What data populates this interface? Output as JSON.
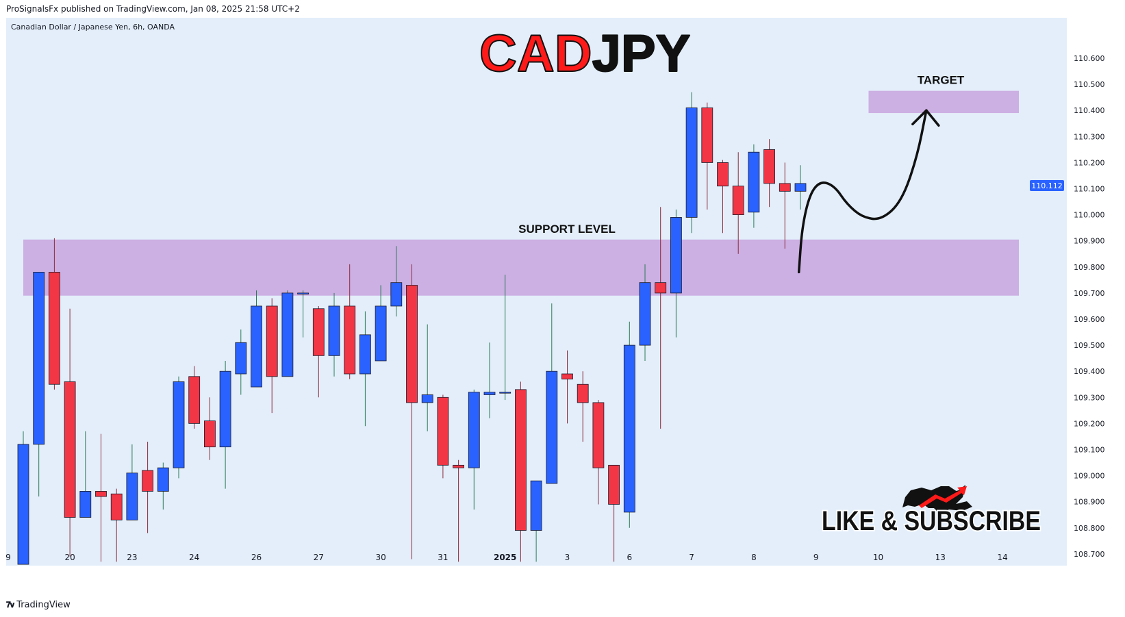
{
  "header": {
    "published": "ProSignalsFx published on TradingView.com, Jan 08, 2025 21:58 UTC+2"
  },
  "footer": {
    "brand": "TradingView",
    "logo_icon": "tradingview-logo-icon"
  },
  "colors": {
    "background": "#e3eefa",
    "bull": "#2962ff",
    "bear": "#f23645",
    "zone": "#c9a7e0",
    "price_label_bg": "#2962ff",
    "title_red": "#ff1a1a",
    "title_black": "#111111"
  },
  "chart_data": {
    "type": "candlestick",
    "symbol_info": "Canadian Dollar / Japanese Yen, 6h, OANDA",
    "title_part1": "CAD",
    "title_part2": "JPY",
    "ylim": [
      108.655,
      110.755
    ],
    "y_ticks": [
      "110.600",
      "110.500",
      "110.400",
      "110.300",
      "110.200",
      "110.100",
      "110.000",
      "109.900",
      "109.800",
      "109.700",
      "109.600",
      "109.500",
      "109.400",
      "109.300",
      "109.200",
      "109.100",
      "109.000",
      "108.900",
      "108.800",
      "108.700"
    ],
    "x_ticks": [
      {
        "label": "9",
        "index": -1,
        "bold": false
      },
      {
        "label": "20",
        "index": 3,
        "bold": false
      },
      {
        "label": "23",
        "index": 7,
        "bold": false
      },
      {
        "label": "24",
        "index": 11,
        "bold": false
      },
      {
        "label": "26",
        "index": 15,
        "bold": false
      },
      {
        "label": "27",
        "index": 19,
        "bold": false
      },
      {
        "label": "30",
        "index": 23,
        "bold": false
      },
      {
        "label": "31",
        "index": 27,
        "bold": false
      },
      {
        "label": "2025",
        "index": 31,
        "bold": true
      },
      {
        "label": "3",
        "index": 35,
        "bold": false
      },
      {
        "label": "6",
        "index": 39,
        "bold": false
      },
      {
        "label": "7",
        "index": 43,
        "bold": false
      },
      {
        "label": "8",
        "index": 47,
        "bold": false
      },
      {
        "label": "9",
        "index": 51,
        "bold": false
      },
      {
        "label": "10",
        "index": 55,
        "bold": false
      },
      {
        "label": "13",
        "index": 59,
        "bold": false
      },
      {
        "label": "14",
        "index": 63,
        "bold": false
      }
    ],
    "candles": [
      {
        "o": 108.66,
        "h": 109.17,
        "l": 108.66,
        "c": 109.12
      },
      {
        "o": 109.12,
        "h": 109.78,
        "l": 108.92,
        "c": 109.78
      },
      {
        "o": 109.78,
        "h": 109.91,
        "l": 109.33,
        "c": 109.35
      },
      {
        "o": 109.36,
        "h": 109.64,
        "l": 108.69,
        "c": 108.84
      },
      {
        "o": 108.84,
        "h": 109.17,
        "l": 108.84,
        "c": 108.94
      },
      {
        "o": 108.94,
        "h": 109.16,
        "l": 108.67,
        "c": 108.92
      },
      {
        "o": 108.93,
        "h": 108.95,
        "l": 108.67,
        "c": 108.83
      },
      {
        "o": 108.83,
        "h": 109.12,
        "l": 108.83,
        "c": 109.01
      },
      {
        "o": 109.02,
        "h": 109.13,
        "l": 108.78,
        "c": 108.94
      },
      {
        "o": 108.94,
        "h": 109.05,
        "l": 108.87,
        "c": 109.03
      },
      {
        "o": 109.03,
        "h": 109.38,
        "l": 108.99,
        "c": 109.36
      },
      {
        "o": 109.38,
        "h": 109.42,
        "l": 109.18,
        "c": 109.2
      },
      {
        "o": 109.21,
        "h": 109.3,
        "l": 109.06,
        "c": 109.11
      },
      {
        "o": 109.11,
        "h": 109.44,
        "l": 108.95,
        "c": 109.4
      },
      {
        "o": 109.39,
        "h": 109.56,
        "l": 109.31,
        "c": 109.51
      },
      {
        "o": 109.34,
        "h": 109.71,
        "l": 109.34,
        "c": 109.65
      },
      {
        "o": 109.65,
        "h": 109.68,
        "l": 109.24,
        "c": 109.38
      },
      {
        "o": 109.38,
        "h": 109.71,
        "l": 109.38,
        "c": 109.7
      },
      {
        "o": 109.7,
        "h": 109.71,
        "l": 109.53,
        "c": 109.7
      },
      {
        "o": 109.64,
        "h": 109.65,
        "l": 109.3,
        "c": 109.46
      },
      {
        "o": 109.46,
        "h": 109.7,
        "l": 109.38,
        "c": 109.65
      },
      {
        "o": 109.65,
        "h": 109.81,
        "l": 109.37,
        "c": 109.39
      },
      {
        "o": 109.39,
        "h": 109.63,
        "l": 109.19,
        "c": 109.54
      },
      {
        "o": 109.44,
        "h": 109.73,
        "l": 109.44,
        "c": 109.65
      },
      {
        "o": 109.65,
        "h": 109.88,
        "l": 109.61,
        "c": 109.74
      },
      {
        "o": 109.73,
        "h": 109.81,
        "l": 108.68,
        "c": 109.28
      },
      {
        "o": 109.28,
        "h": 109.58,
        "l": 109.17,
        "c": 109.31
      },
      {
        "o": 109.3,
        "h": 109.31,
        "l": 108.99,
        "c": 109.04
      },
      {
        "o": 109.04,
        "h": 109.06,
        "l": 108.67,
        "c": 109.03
      },
      {
        "o": 109.03,
        "h": 109.33,
        "l": 108.87,
        "c": 109.32
      },
      {
        "o": 109.31,
        "h": 109.51,
        "l": 109.22,
        "c": 109.32
      },
      {
        "o": 109.32,
        "h": 109.77,
        "l": 109.29,
        "c": 109.32
      },
      {
        "o": 109.33,
        "h": 109.36,
        "l": 108.67,
        "c": 108.79
      },
      {
        "o": 108.79,
        "h": 108.98,
        "l": 108.67,
        "c": 108.98
      },
      {
        "o": 108.97,
        "h": 109.66,
        "l": 108.97,
        "c": 109.4
      },
      {
        "o": 109.39,
        "h": 109.48,
        "l": 109.2,
        "c": 109.37
      },
      {
        "o": 109.35,
        "h": 109.4,
        "l": 109.13,
        "c": 109.28
      },
      {
        "o": 109.28,
        "h": 109.29,
        "l": 108.89,
        "c": 109.03
      },
      {
        "o": 109.04,
        "h": 109.04,
        "l": 108.67,
        "c": 108.89
      },
      {
        "o": 108.86,
        "h": 109.59,
        "l": 108.8,
        "c": 109.5
      },
      {
        "o": 109.5,
        "h": 109.81,
        "l": 109.44,
        "c": 109.74
      },
      {
        "o": 109.74,
        "h": 110.03,
        "l": 109.18,
        "c": 109.7
      },
      {
        "o": 109.7,
        "h": 110.02,
        "l": 109.53,
        "c": 109.99
      },
      {
        "o": 109.99,
        "h": 110.47,
        "l": 109.93,
        "c": 110.41
      },
      {
        "o": 110.41,
        "h": 110.43,
        "l": 110.02,
        "c": 110.2
      },
      {
        "o": 110.2,
        "h": 110.21,
        "l": 109.93,
        "c": 110.11
      },
      {
        "o": 110.11,
        "h": 110.24,
        "l": 109.85,
        "c": 110.0
      },
      {
        "o": 110.01,
        "h": 110.27,
        "l": 109.95,
        "c": 110.24
      },
      {
        "o": 110.25,
        "h": 110.29,
        "l": 110.03,
        "c": 110.12
      },
      {
        "o": 110.12,
        "h": 110.2,
        "l": 109.87,
        "c": 110.09
      },
      {
        "o": 110.09,
        "h": 110.19,
        "l": 110.02,
        "c": 110.12
      }
    ],
    "zones": [
      {
        "name": "support-zone",
        "label": "SUPPORT LEVEL",
        "y_low": 109.69,
        "y_high": 109.905,
        "from_index": 0,
        "to_index": 63
      },
      {
        "name": "target-zone",
        "label": "TARGET",
        "y_low": 110.39,
        "y_high": 110.475,
        "from_index": 55,
        "to_index": 63
      }
    ],
    "projection_path": [
      {
        "i": 49.9,
        "p": 109.78
      },
      {
        "i": 50.1,
        "p": 109.95
      },
      {
        "i": 50.6,
        "p": 110.08
      },
      {
        "i": 51.3,
        "p": 110.13
      },
      {
        "i": 52.2,
        "p": 110.11
      },
      {
        "i": 53.0,
        "p": 110.04
      },
      {
        "i": 54.0,
        "p": 109.99
      },
      {
        "i": 55.2,
        "p": 109.98
      },
      {
        "i": 56.5,
        "p": 110.05
      },
      {
        "i": 57.5,
        "p": 110.22
      },
      {
        "i": 58.1,
        "p": 110.4
      }
    ],
    "last_price": "110.112",
    "last_price_value": 110.112,
    "annotations": {
      "cta": "LIKE & SUBSCRIBE",
      "logo_icon": "bull-bear-logo-icon"
    }
  }
}
